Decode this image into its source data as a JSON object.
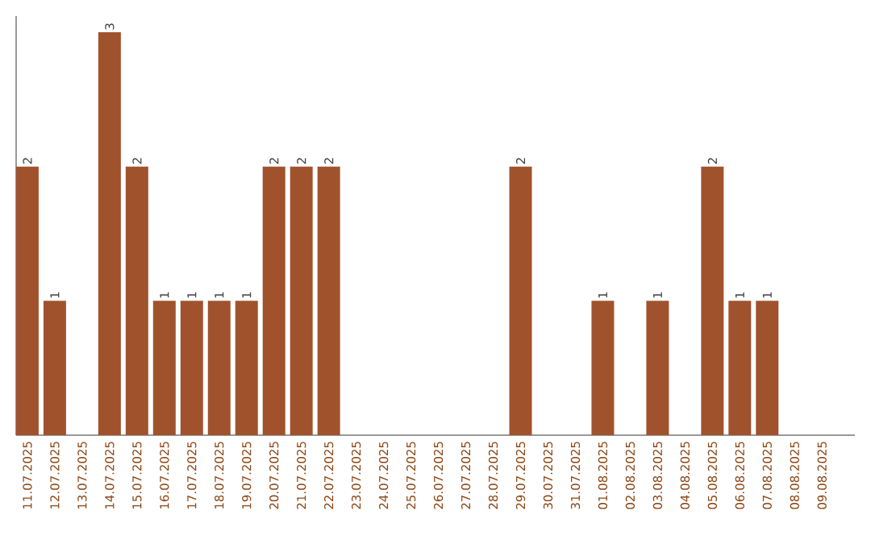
{
  "chart_data": {
    "type": "bar",
    "categories": [
      "11.07.2025",
      "12.07.2025",
      "13.07.2025",
      "14.07.2025",
      "15.07.2025",
      "16.07.2025",
      "17.07.2025",
      "18.07.2025",
      "19.07.2025",
      "20.07.2025",
      "21.07.2025",
      "22.07.2025",
      "23.07.2025",
      "24.07.2025",
      "25.07.2025",
      "26.07.2025",
      "27.07.2025",
      "28.07.2025",
      "29.07.2025",
      "30.07.2025",
      "31.07.2025",
      "01.08.2025",
      "02.08.2025",
      "03.08.2025",
      "04.08.2025",
      "05.08.2025",
      "06.08.2025",
      "07.08.2025",
      "08.08.2025",
      "09.08.2025"
    ],
    "values": [
      2,
      1,
      0,
      3,
      2,
      1,
      1,
      1,
      1,
      2,
      2,
      2,
      0,
      0,
      0,
      0,
      0,
      0,
      2,
      0,
      0,
      1,
      0,
      1,
      0,
      2,
      1,
      1,
      0,
      0
    ],
    "value_labels": [
      "2",
      "1",
      null,
      "3",
      "2",
      "1",
      "1",
      "1",
      "1",
      "2",
      "2",
      "2",
      null,
      null,
      null,
      null,
      null,
      null,
      "2",
      null,
      null,
      "1",
      null,
      "1",
      null,
      "2",
      "1",
      "1",
      null,
      null
    ],
    "color": "#a0522d",
    "ylim": [
      0,
      3.12
    ],
    "tick_labels": "x"
  }
}
